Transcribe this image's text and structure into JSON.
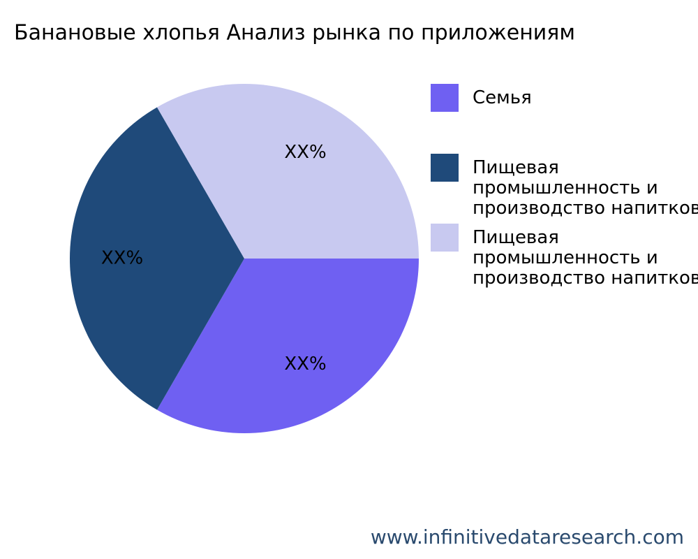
{
  "chart_data": {
    "type": "pie",
    "title": "Банановые хлопья Анализ рынка по приложениям",
    "categories": [
      "Семья",
      "Пищевая промышленность и производство напитков",
      "Пищевая промышленность и производство напитков"
    ],
    "values": [
      33.3,
      33.3,
      33.3
    ],
    "value_labels": [
      "XX%",
      "XX%",
      "XX%"
    ],
    "colors": [
      "#6f60f2",
      "#1f4a7a",
      "#c8c9f0"
    ],
    "legend": "right"
  },
  "footer": "www.infinitivedataresearch.com"
}
